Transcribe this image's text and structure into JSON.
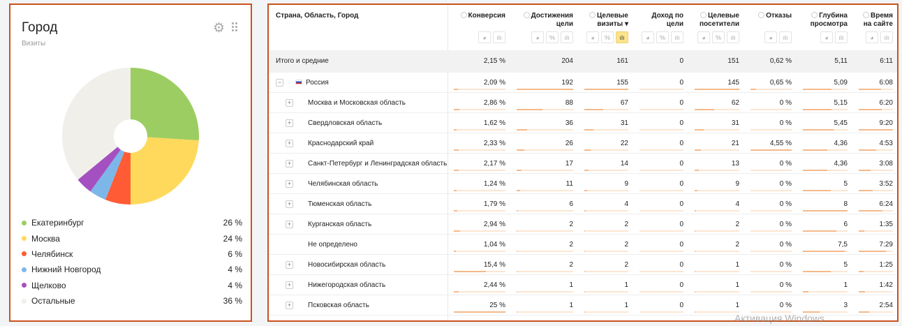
{
  "widget": {
    "title": "Город",
    "subtitle": "Визиты"
  },
  "pie": {
    "slices": [
      {
        "label": "Екатеринбург",
        "value": 26,
        "pct": "26 %",
        "color": "#9ccd62"
      },
      {
        "label": "Москва",
        "value": 24,
        "pct": "24 %",
        "color": "#ffd95c"
      },
      {
        "label": "Челябинск",
        "value": 6,
        "pct": "6 %",
        "color": "#ff5b35"
      },
      {
        "label": "Нижний Новгород",
        "value": 4,
        "pct": "4 %",
        "color": "#7db7ea"
      },
      {
        "label": "Щелково",
        "value": 4,
        "pct": "4 %",
        "color": "#a450c0"
      },
      {
        "label": "Остальные",
        "value": 36,
        "pct": "36 %",
        "color": "#f1efea"
      }
    ]
  },
  "table": {
    "dim_header": "Страна, Область, Город",
    "columns": [
      {
        "label": "Конверсия",
        "help": true,
        "buttons": [
          "pie",
          "bar"
        ]
      },
      {
        "label": "Достижения цели",
        "help": true,
        "buttons": [
          "pie",
          "%",
          "bar"
        ]
      },
      {
        "label": "Целевые визиты ▾",
        "help": true,
        "buttons": [
          "pie",
          "%",
          "bar*"
        ]
      },
      {
        "label": "Доход по цели",
        "help": false,
        "buttons": [
          "pie",
          "%",
          "bar"
        ]
      },
      {
        "label": "Целевые посетители",
        "help": true,
        "buttons": [
          "pie",
          "%",
          "bar"
        ]
      },
      {
        "label": "Отказы",
        "help": true,
        "buttons": [
          "pie",
          "bar"
        ]
      },
      {
        "label": "Глубина просмотра",
        "help": true,
        "buttons": [
          "pie",
          "bar"
        ]
      },
      {
        "label": "Время на сайте",
        "help": true,
        "buttons": [
          "pie",
          "bar"
        ]
      }
    ],
    "total": {
      "name": "Итого и средние",
      "values": [
        "2,15 %",
        "204",
        "161",
        "0",
        "151",
        "0,62 %",
        "5,11",
        "6:11"
      ]
    },
    "rows": [
      {
        "name": "Россия",
        "level": 0,
        "toggle": "−",
        "flag": true,
        "values": [
          "2,09 %",
          "192",
          "155",
          "0",
          "145",
          "0,65 %",
          "5,09",
          "6:08"
        ]
      },
      {
        "name": "Москва и Московская область",
        "level": 1,
        "toggle": "+",
        "values": [
          "2,86 %",
          "88",
          "67",
          "0",
          "62",
          "0 %",
          "5,15",
          "6:20"
        ]
      },
      {
        "name": "Свердловская область",
        "level": 1,
        "toggle": "+",
        "values": [
          "1,62 %",
          "36",
          "31",
          "0",
          "31",
          "0 %",
          "5,45",
          "9:20"
        ]
      },
      {
        "name": "Краснодарский край",
        "level": 1,
        "toggle": "+",
        "values": [
          "2,33 %",
          "26",
          "22",
          "0",
          "21",
          "4,55 %",
          "4,36",
          "4:53"
        ]
      },
      {
        "name": "Санкт-Петербург и Ленинградская область",
        "level": 1,
        "toggle": "+",
        "values": [
          "2,17 %",
          "17",
          "14",
          "0",
          "13",
          "0 %",
          "4,36",
          "3:08"
        ]
      },
      {
        "name": "Челябинская область",
        "level": 1,
        "toggle": "+",
        "values": [
          "1,24 %",
          "11",
          "9",
          "0",
          "9",
          "0 %",
          "5",
          "3:52"
        ]
      },
      {
        "name": "Тюменская область",
        "level": 1,
        "toggle": "+",
        "values": [
          "1,79 %",
          "6",
          "4",
          "0",
          "4",
          "0 %",
          "8",
          "6:24"
        ]
      },
      {
        "name": "Курганская область",
        "level": 1,
        "toggle": "+",
        "values": [
          "2,94 %",
          "2",
          "2",
          "0",
          "2",
          "0 %",
          "6",
          "1:35"
        ]
      },
      {
        "name": "Не определено",
        "level": 1,
        "toggle": "",
        "values": [
          "1,04 %",
          "2",
          "2",
          "0",
          "2",
          "0 %",
          "7,5",
          "7:29"
        ]
      },
      {
        "name": "Новосибирская область",
        "level": 1,
        "toggle": "+",
        "values": [
          "15,4 %",
          "2",
          "2",
          "0",
          "1",
          "0 %",
          "5",
          "1:25"
        ]
      },
      {
        "name": "Нижегородская область",
        "level": 1,
        "toggle": "+",
        "values": [
          "2,44 %",
          "1",
          "1",
          "0",
          "1",
          "0 %",
          "1",
          "1:42"
        ]
      },
      {
        "name": "Псковская область",
        "level": 1,
        "toggle": "+",
        "values": [
          "25 %",
          "1",
          "1",
          "0",
          "1",
          "0 %",
          "3",
          "2:54"
        ]
      }
    ]
  },
  "watermark": "Активация Windows"
}
